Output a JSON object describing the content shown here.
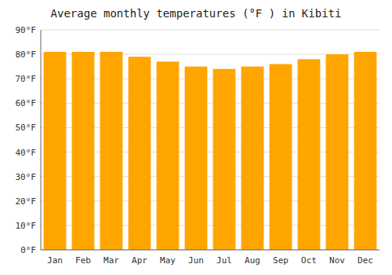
{
  "chart_data": {
    "type": "bar",
    "title": "Average monthly temperatures (°F ) in Kibiti",
    "categories": [
      "Jan",
      "Feb",
      "Mar",
      "Apr",
      "May",
      "Jun",
      "Jul",
      "Aug",
      "Sep",
      "Oct",
      "Nov",
      "Dec"
    ],
    "values": [
      81,
      81,
      81,
      79,
      77,
      75,
      74,
      75,
      76,
      78,
      80,
      81
    ],
    "color": "#FFA500",
    "ylim": [
      0,
      90
    ],
    "yticks": [
      {
        "value": 0,
        "label": "0°F"
      },
      {
        "value": 10,
        "label": "10°F"
      },
      {
        "value": 20,
        "label": "20°F"
      },
      {
        "value": 30,
        "label": "30°F"
      },
      {
        "value": 40,
        "label": "40°F"
      },
      {
        "value": 50,
        "label": "50°F"
      },
      {
        "value": 60,
        "label": "60°F"
      },
      {
        "value": 70,
        "label": "70°F"
      },
      {
        "value": 80,
        "label": "80°F"
      },
      {
        "value": 90,
        "label": "90°F"
      }
    ],
    "grid": true
  }
}
